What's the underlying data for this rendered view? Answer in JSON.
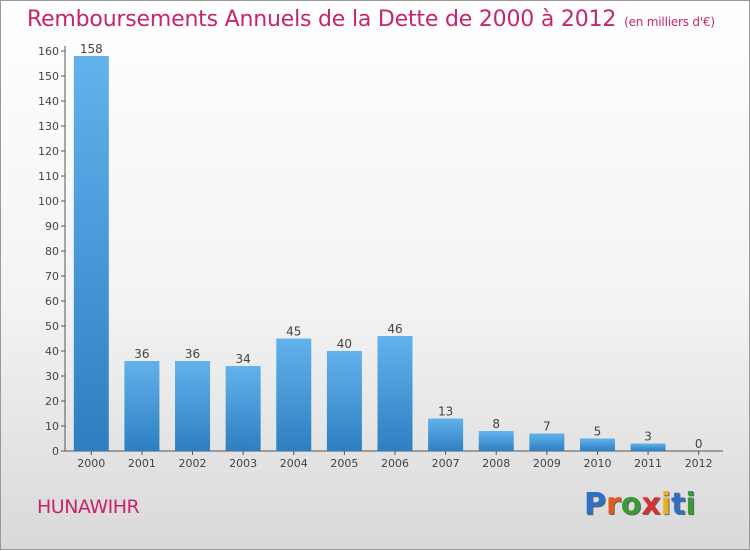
{
  "title": "Remboursements Annuels de la Dette de 2000 à 2012",
  "subtitle": "(en milliers d'€)",
  "commune": "HUNAWIHR",
  "brand": {
    "text": "Proxiti",
    "letter_colors": [
      "#2f6fc4",
      "#e05a1c",
      "#3a9a36",
      "#d63030",
      "#e8b020",
      "#2f6fc4",
      "#3a9a36"
    ]
  },
  "colors": {
    "title": "#c8246e",
    "bar_top": "#62b2ec",
    "bar_bottom": "#2e7fc1"
  },
  "chart_data": {
    "type": "bar",
    "categories": [
      "2000",
      "2001",
      "2002",
      "2003",
      "2004",
      "2005",
      "2006",
      "2007",
      "2008",
      "2009",
      "2010",
      "2011",
      "2012"
    ],
    "values": [
      158,
      36,
      36,
      34,
      45,
      40,
      46,
      13,
      8,
      7,
      5,
      3,
      0
    ],
    "ylim": [
      0,
      160
    ],
    "yticks": [
      0,
      10,
      20,
      30,
      40,
      50,
      60,
      70,
      80,
      90,
      100,
      110,
      120,
      130,
      140,
      150,
      160
    ],
    "grid": false
  }
}
